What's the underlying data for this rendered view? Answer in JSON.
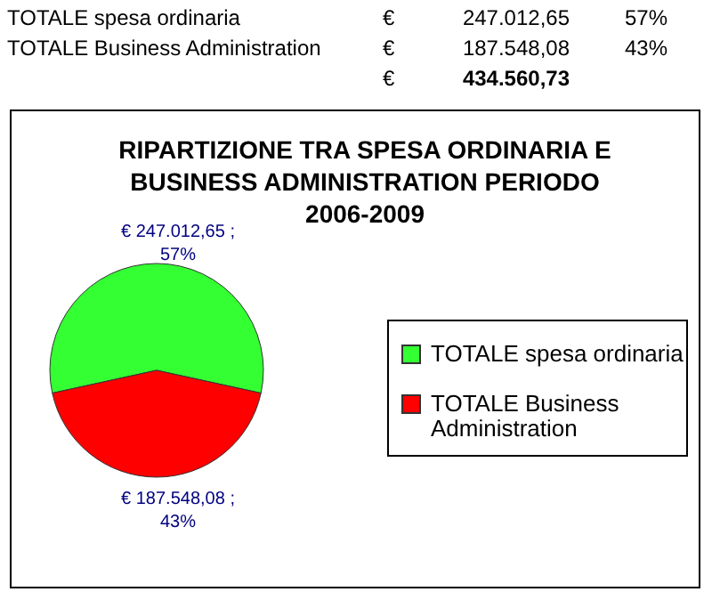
{
  "chart_data": {
    "type": "pie",
    "title": "RIPARTIZIONE TRA SPESA ORDINARIA E BUSINESS ADMINISTRATION PERIODO 2006-2009",
    "categories": [
      "TOTALE spesa ordinaria",
      "TOTALE Business Administration"
    ],
    "values": [
      247012.65,
      187548.08
    ],
    "colors": [
      "#33ff33",
      "#ff0000"
    ],
    "value_labels": [
      "€ 247.012,65 ; 57%",
      "€ 187.548,08 ; 43%"
    ],
    "legend": "right",
    "annotations": [
      "TOTALE spesa ordinaria",
      "€",
      "247.012,65",
      "57%",
      "TOTALE Business Administration",
      "€",
      "187.548,08",
      "43%",
      "€",
      "434.560,73"
    ]
  }
}
